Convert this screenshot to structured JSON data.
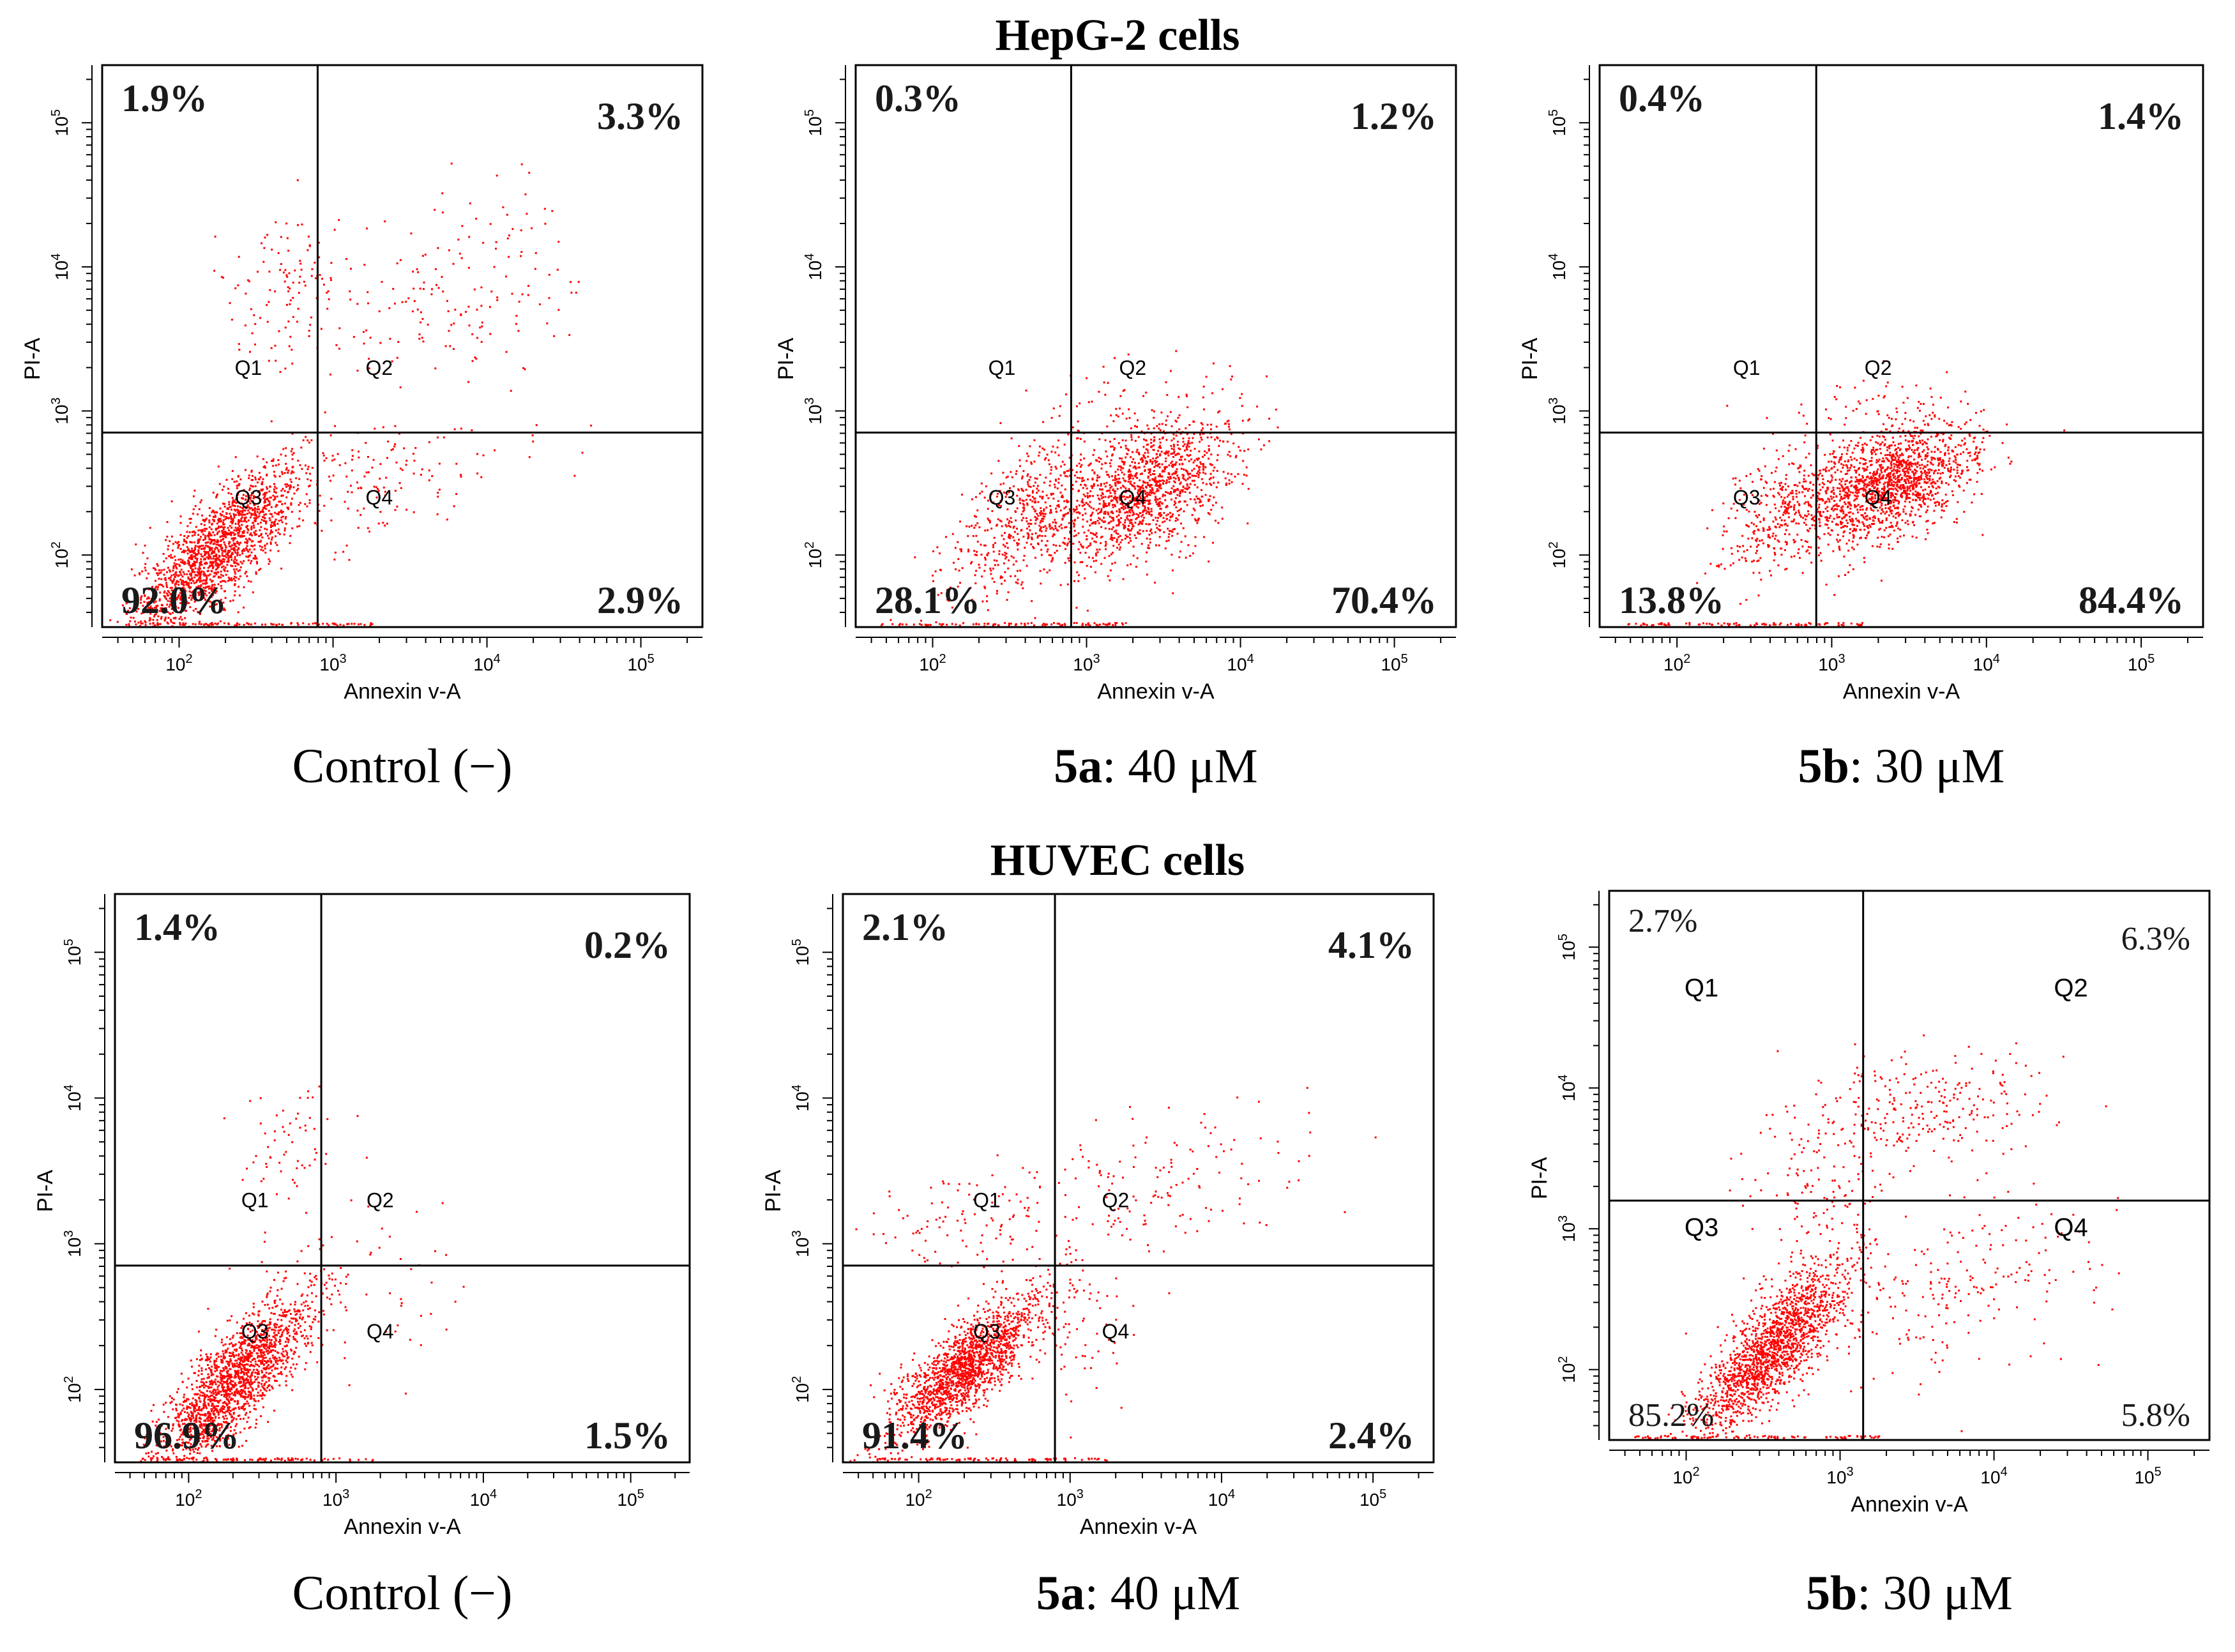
{
  "figure": {
    "section_titles": [
      "HepG-2 cells",
      "HUVEC cells"
    ],
    "colors": {
      "dot": "#ff0000",
      "axis": "#000000",
      "background": "#ffffff",
      "pct_text": "#1a1a1a"
    }
  },
  "chart_data": [
    {
      "type": "scatter",
      "panel": "HepG-2 Control",
      "caption": {
        "bold": "",
        "text": "Control (−)"
      },
      "xlabel": "Annexin v-A",
      "ylabel": "PI-A",
      "xlim": [
        1.5,
        5.4
      ],
      "ylim": [
        1.5,
        5.4
      ],
      "xticks": [
        "10^2",
        "10^3",
        "10^4",
        "10^5"
      ],
      "yticks": [
        "10^2",
        "10^3",
        "10^4",
        "10^5"
      ],
      "gate": {
        "x": 2.9,
        "y": 2.85
      },
      "quadrant_labels": [
        "Q1",
        "Q2",
        "Q3",
        "Q4"
      ],
      "quadrant_label_positions": [
        [
          2.45,
          3.25
        ],
        [
          3.3,
          3.25
        ],
        [
          2.45,
          2.35
        ],
        [
          3.3,
          2.35
        ]
      ],
      "quadrant_percent": {
        "Q1": "1.9%",
        "Q2": "3.3%",
        "Q3": "92.0%",
        "Q4": "2.9%"
      },
      "percent_style": "bold",
      "clusters": [
        {
          "n": 1700,
          "mx": 2.25,
          "my": 2.05,
          "sx": 0.28,
          "sy": 0.3,
          "rho": 0.8
        },
        {
          "n": 120,
          "mx": 2.7,
          "my": 3.9,
          "sx": 0.2,
          "sy": 0.25,
          "rho": 0.2
        },
        {
          "n": 160,
          "mx": 3.8,
          "my": 3.8,
          "sx": 0.45,
          "sy": 0.35,
          "rho": 0.4
        },
        {
          "n": 140,
          "mx": 3.3,
          "my": 2.55,
          "sx": 0.4,
          "sy": 0.25,
          "rho": 0.4
        }
      ]
    },
    {
      "type": "scatter",
      "panel": "HepG-2 5a",
      "caption": {
        "bold": "5a",
        "text": ": 40 μM"
      },
      "xlabel": "Annexin v-A",
      "ylabel": "PI-A",
      "xlim": [
        1.5,
        5.4
      ],
      "ylim": [
        1.5,
        5.4
      ],
      "xticks": [
        "10^2",
        "10^3",
        "10^4",
        "10^5"
      ],
      "yticks": [
        "10^2",
        "10^3",
        "10^4",
        "10^5"
      ],
      "gate": {
        "x": 2.9,
        "y": 2.85
      },
      "quadrant_labels": [
        "Q1",
        "Q2",
        "Q3",
        "Q4"
      ],
      "quadrant_label_positions": [
        [
          2.45,
          3.25
        ],
        [
          3.3,
          3.25
        ],
        [
          2.45,
          2.35
        ],
        [
          3.3,
          2.35
        ]
      ],
      "quadrant_percent": {
        "Q1": "0.3%",
        "Q2": "1.2%",
        "Q3": "28.1%",
        "Q4": "70.4%"
      },
      "percent_style": "bold",
      "clusters": [
        {
          "n": 500,
          "mx": 2.55,
          "my": 2.25,
          "sx": 0.25,
          "sy": 0.3,
          "rho": 0.6
        },
        {
          "n": 1400,
          "mx": 3.35,
          "my": 2.45,
          "sx": 0.3,
          "sy": 0.25,
          "rho": 0.5
        },
        {
          "n": 40,
          "mx": 3.3,
          "my": 3.1,
          "sx": 0.3,
          "sy": 0.15,
          "rho": 0.0
        }
      ]
    },
    {
      "type": "scatter",
      "panel": "HepG-2 5b",
      "caption": {
        "bold": "5b",
        "text": ": 30 μM"
      },
      "xlabel": "Annexin v-A",
      "ylabel": "PI-A",
      "xlim": [
        1.5,
        5.4
      ],
      "ylim": [
        1.5,
        5.4
      ],
      "xticks": [
        "10^2",
        "10^3",
        "10^4",
        "10^5"
      ],
      "yticks": [
        "10^2",
        "10^3",
        "10^4",
        "10^5"
      ],
      "gate": {
        "x": 2.9,
        "y": 2.85
      },
      "quadrant_labels": [
        "Q1",
        "Q2",
        "Q3",
        "Q4"
      ],
      "quadrant_label_positions": [
        [
          2.45,
          3.25
        ],
        [
          3.3,
          3.25
        ],
        [
          2.45,
          2.35
        ],
        [
          3.3,
          2.35
        ]
      ],
      "quadrant_percent": {
        "Q1": "0.4%",
        "Q2": "1.4%",
        "Q3": "13.8%",
        "Q4": "84.4%"
      },
      "percent_style": "bold",
      "clusters": [
        {
          "n": 300,
          "mx": 2.65,
          "my": 2.3,
          "sx": 0.2,
          "sy": 0.25,
          "rho": 0.5
        },
        {
          "n": 1600,
          "mx": 3.35,
          "my": 2.5,
          "sx": 0.28,
          "sy": 0.22,
          "rho": 0.5
        },
        {
          "n": 40,
          "mx": 3.2,
          "my": 3.05,
          "sx": 0.3,
          "sy": 0.12,
          "rho": 0.0
        }
      ]
    },
    {
      "type": "scatter",
      "panel": "HUVEC Control",
      "caption": {
        "bold": "",
        "text": "Control (−)"
      },
      "xlabel": "Annexin v-A",
      "ylabel": "PI-A",
      "xlim": [
        1.5,
        5.4
      ],
      "ylim": [
        1.5,
        5.4
      ],
      "xticks": [
        "10^2",
        "10^3",
        "10^4",
        "10^5"
      ],
      "yticks": [
        "10^2",
        "10^3",
        "10^4",
        "10^5"
      ],
      "gate": {
        "x": 2.9,
        "y": 2.85
      },
      "quadrant_labels": [
        "Q1",
        "Q2",
        "Q3",
        "Q4"
      ],
      "quadrant_label_positions": [
        [
          2.45,
          3.25
        ],
        [
          3.3,
          3.25
        ],
        [
          2.45,
          2.35
        ],
        [
          3.3,
          2.35
        ]
      ],
      "quadrant_percent": {
        "Q1": "1.4%",
        "Q2": "0.2%",
        "Q3": "96.9%",
        "Q4": "1.5%"
      },
      "percent_style": "bold",
      "clusters": [
        {
          "n": 1800,
          "mx": 2.3,
          "my": 2.05,
          "sx": 0.26,
          "sy": 0.3,
          "rho": 0.8
        },
        {
          "n": 60,
          "mx": 2.7,
          "my": 3.7,
          "sx": 0.18,
          "sy": 0.2,
          "rho": 0.2
        },
        {
          "n": 60,
          "mx": 3.2,
          "my": 2.75,
          "sx": 0.35,
          "sy": 0.25,
          "rho": 0.0
        }
      ]
    },
    {
      "type": "scatter",
      "panel": "HUVEC 5a",
      "caption": {
        "bold": "5a",
        "text": ": 40 μM"
      },
      "xlabel": "Annexin v-A",
      "ylabel": "PI-A",
      "xlim": [
        1.5,
        5.4
      ],
      "ylim": [
        1.5,
        5.4
      ],
      "xticks": [
        "10^2",
        "10^3",
        "10^4",
        "10^5"
      ],
      "yticks": [
        "10^2",
        "10^3",
        "10^4",
        "10^5"
      ],
      "gate": {
        "x": 2.9,
        "y": 2.85
      },
      "quadrant_labels": [
        "Q1",
        "Q2",
        "Q3",
        "Q4"
      ],
      "quadrant_label_positions": [
        [
          2.45,
          3.25
        ],
        [
          3.3,
          3.25
        ],
        [
          2.45,
          2.35
        ],
        [
          3.3,
          2.35
        ]
      ],
      "quadrant_percent": {
        "Q1": "2.1%",
        "Q2": "4.1%",
        "Q3": "91.4%",
        "Q4": "2.4%"
      },
      "percent_style": "bold",
      "clusters": [
        {
          "n": 1700,
          "mx": 2.3,
          "my": 2.15,
          "sx": 0.25,
          "sy": 0.25,
          "rho": 0.8
        },
        {
          "n": 100,
          "mx": 2.4,
          "my": 3.15,
          "sx": 0.35,
          "sy": 0.15,
          "rho": 0.0
        },
        {
          "n": 150,
          "mx": 3.6,
          "my": 3.4,
          "sx": 0.45,
          "sy": 0.25,
          "rho": 0.2
        },
        {
          "n": 60,
          "mx": 3.1,
          "my": 2.4,
          "sx": 0.15,
          "sy": 0.25,
          "rho": 0.0
        }
      ]
    },
    {
      "type": "scatter",
      "panel": "HUVEC 5b",
      "caption": {
        "bold": "5b",
        "text": ": 30 μM"
      },
      "xlabel": "Annexin v-A",
      "ylabel": "PI-A",
      "xlim": [
        1.5,
        5.4
      ],
      "ylim": [
        1.5,
        5.4
      ],
      "xticks": [
        "10^2",
        "10^3",
        "10^4",
        "10^5"
      ],
      "yticks": [
        "10^2",
        "10^3",
        "10^4",
        "10^5"
      ],
      "gate": {
        "x": 3.15,
        "y": 3.2
      },
      "quadrant_labels": [
        "Q1",
        "Q2",
        "Q3",
        "Q4"
      ],
      "quadrant_label_positions": [
        [
          2.1,
          4.65
        ],
        [
          4.5,
          4.65
        ],
        [
          2.1,
          2.95
        ],
        [
          4.5,
          2.95
        ]
      ],
      "quadrant_percent": {
        "Q1": "2.7%",
        "Q2": "6.3%",
        "Q3": "85.2%",
        "Q4": "5.8%"
      },
      "percent_style": "normal",
      "clusters": [
        {
          "n": 1700,
          "mx": 2.55,
          "my": 2.15,
          "sx": 0.25,
          "sy": 0.3,
          "rho": 0.8
        },
        {
          "n": 260,
          "mx": 3.55,
          "my": 3.85,
          "sx": 0.4,
          "sy": 0.2,
          "rho": 0.3
        },
        {
          "n": 200,
          "mx": 3.75,
          "my": 2.6,
          "sx": 0.45,
          "sy": 0.3,
          "rho": 0.4
        },
        {
          "n": 160,
          "mx": 2.85,
          "my": 3.2,
          "sx": 0.25,
          "sy": 0.45,
          "rho": 0.2
        }
      ]
    }
  ]
}
